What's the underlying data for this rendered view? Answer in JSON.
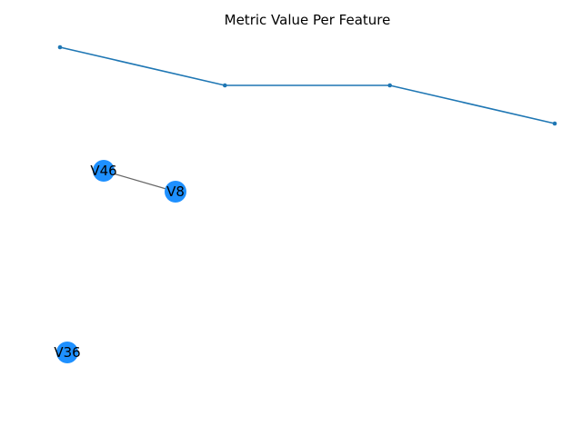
{
  "chart_data": [
    {
      "type": "line",
      "title": "Metric Value Per Feature",
      "x": [
        0,
        1,
        2,
        3
      ],
      "series": [
        {
          "values": [
            4,
            3,
            3,
            2
          ],
          "color": "#1f77b4"
        }
      ],
      "ylim": [
        2,
        4
      ],
      "grid": false,
      "axes_visible": false
    },
    {
      "type": "network",
      "nodes": [
        {
          "id": "V46",
          "label": "V46"
        },
        {
          "id": "V8",
          "label": "V8"
        },
        {
          "id": "V36",
          "label": "V36"
        }
      ],
      "edges": [
        {
          "source": "V46",
          "target": "V8"
        }
      ],
      "node_color": "#1e90ff",
      "edge_color": "#666666"
    }
  ]
}
